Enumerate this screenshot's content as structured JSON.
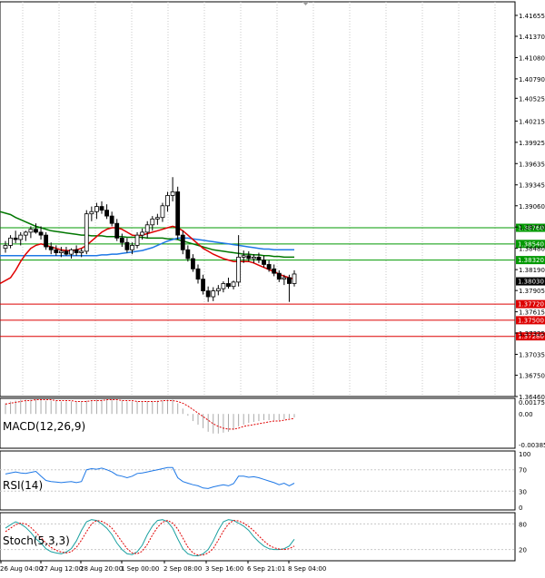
{
  "chart_data": {
    "type": "candlestick",
    "main": {
      "ylim": [
        1.3646,
        1.4184
      ],
      "price_ticks": [
        "1.41655",
        "1.41370",
        "1.41080",
        "1.40790",
        "1.40525",
        "1.40215",
        "1.39925",
        "1.39635",
        "1.39345",
        "1.39060",
        "1.38770",
        "1.38480",
        "1.38190",
        "1.37905",
        "1.37615",
        "1.37325",
        "1.37035",
        "1.36750",
        "1.36460"
      ],
      "current_price": "1.38030",
      "horizontal_levels": [
        {
          "label": "1.38760",
          "value": 1.3876,
          "color": "#009900"
        },
        {
          "label": "1.38540",
          "value": 1.3854,
          "color": "#009900"
        },
        {
          "label": "1.38320",
          "value": 1.3832,
          "color": "#009900"
        },
        {
          "label": "1.37720",
          "value": 1.3772,
          "color": "#dd0000"
        },
        {
          "label": "1.37500",
          "value": 1.375,
          "color": "#dd0000"
        },
        {
          "label": "1.37280",
          "value": 1.3728,
          "color": "#dd0000"
        }
      ],
      "candles": [
        [
          1.3848,
          1.3858,
          1.3842,
          1.3852
        ],
        [
          1.3852,
          1.3866,
          1.3848,
          1.3862
        ],
        [
          1.3862,
          1.3872,
          1.3855,
          1.386
        ],
        [
          1.386,
          1.387,
          1.3852,
          1.3866
        ],
        [
          1.3866,
          1.3872,
          1.3858,
          1.387
        ],
        [
          1.387,
          1.3878,
          1.3862,
          1.3874
        ],
        [
          1.3874,
          1.3882,
          1.3868,
          1.387
        ],
        [
          1.387,
          1.3878,
          1.386,
          1.3866
        ],
        [
          1.3866,
          1.387,
          1.3846,
          1.385
        ],
        [
          1.385,
          1.3856,
          1.384,
          1.3846
        ],
        [
          1.3846,
          1.3852,
          1.3838,
          1.3842
        ],
        [
          1.3842,
          1.385,
          1.3836,
          1.3844
        ],
        [
          1.3844,
          1.385,
          1.3838,
          1.384
        ],
        [
          1.384,
          1.3848,
          1.3834,
          1.3846
        ],
        [
          1.3846,
          1.3852,
          1.3838,
          1.3842
        ],
        [
          1.3842,
          1.3848,
          1.3836,
          1.3844
        ],
        [
          1.3844,
          1.39,
          1.384,
          1.3895
        ],
        [
          1.3895,
          1.3905,
          1.3885,
          1.3898
        ],
        [
          1.3898,
          1.391,
          1.3888,
          1.3905
        ],
        [
          1.3905,
          1.3912,
          1.3895,
          1.39
        ],
        [
          1.39,
          1.3908,
          1.3888,
          1.3892
        ],
        [
          1.3892,
          1.3898,
          1.3878,
          1.3882
        ],
        [
          1.3882,
          1.3888,
          1.3858,
          1.3862
        ],
        [
          1.3862,
          1.3868,
          1.385,
          1.3856
        ],
        [
          1.3856,
          1.3862,
          1.3842,
          1.3846
        ],
        [
          1.3846,
          1.3856,
          1.384,
          1.3852
        ],
        [
          1.3852,
          1.387,
          1.3848,
          1.3866
        ],
        [
          1.3866,
          1.3875,
          1.386,
          1.387
        ],
        [
          1.387,
          1.3885,
          1.3862,
          1.388
        ],
        [
          1.388,
          1.3892,
          1.3872,
          1.3888
        ],
        [
          1.3888,
          1.3895,
          1.388,
          1.389
        ],
        [
          1.389,
          1.391,
          1.3884,
          1.3906
        ],
        [
          1.3906,
          1.3925,
          1.3898,
          1.392
        ],
        [
          1.392,
          1.3945,
          1.3912,
          1.3925
        ],
        [
          1.3925,
          1.3932,
          1.386,
          1.3866
        ],
        [
          1.3866,
          1.3872,
          1.384,
          1.3846
        ],
        [
          1.3846,
          1.3852,
          1.383,
          1.3834
        ],
        [
          1.3834,
          1.384,
          1.3816,
          1.382
        ],
        [
          1.382,
          1.3826,
          1.38,
          1.3806
        ],
        [
          1.3806,
          1.3812,
          1.3785,
          1.379
        ],
        [
          1.379,
          1.3796,
          1.3775,
          1.3782
        ],
        [
          1.3782,
          1.3795,
          1.3776,
          1.379
        ],
        [
          1.379,
          1.3798,
          1.3784,
          1.3793
        ],
        [
          1.3793,
          1.3803,
          1.3788,
          1.38
        ],
        [
          1.38,
          1.3808,
          1.3793,
          1.3796
        ],
        [
          1.3796,
          1.3804,
          1.3792,
          1.3802
        ],
        [
          1.3802,
          1.3866,
          1.3796,
          1.3836
        ],
        [
          1.3836,
          1.3845,
          1.3828,
          1.3838
        ],
        [
          1.3838,
          1.3844,
          1.383,
          1.3834
        ],
        [
          1.3834,
          1.384,
          1.3828,
          1.3836
        ],
        [
          1.3836,
          1.3842,
          1.3828,
          1.3832
        ],
        [
          1.3832,
          1.3838,
          1.3822,
          1.3826
        ],
        [
          1.3826,
          1.3832,
          1.3816,
          1.382
        ],
        [
          1.382,
          1.3826,
          1.381,
          1.3814
        ],
        [
          1.3814,
          1.3818,
          1.3802,
          1.3806
        ],
        [
          1.3806,
          1.3812,
          1.3798,
          1.3808
        ],
        [
          1.3808,
          1.3812,
          1.3775,
          1.38
        ],
        [
          1.38,
          1.3818,
          1.3796,
          1.3813
        ]
      ],
      "ma_fast": [
        1.38,
        1.3808,
        1.3818,
        1.383,
        1.384,
        1.3848,
        1.3852,
        1.3854,
        1.3852,
        1.385,
        1.3848,
        1.3846,
        1.3845,
        1.3845,
        1.3846,
        1.3848,
        1.3852,
        1.3858,
        1.3864,
        1.387,
        1.3874,
        1.3876,
        1.3876,
        1.3874,
        1.387,
        1.3866,
        1.3865,
        1.3866,
        1.3868,
        1.387,
        1.3872,
        1.3874,
        1.3876,
        1.3878,
        1.3876,
        1.3872,
        1.3866,
        1.386,
        1.3854,
        1.3848,
        1.3844,
        1.384,
        1.3837,
        1.3834,
        1.3832,
        1.383,
        1.383,
        1.383,
        1.383,
        1.3828,
        1.3825,
        1.3822,
        1.3819,
        1.3816,
        1.3813,
        1.381,
        1.3808,
        1.3806
      ],
      "ma_slow": [
        1.3898,
        1.3894,
        1.389,
        1.3887,
        1.3884,
        1.3881,
        1.3878,
        1.3876,
        1.3874,
        1.3872,
        1.3871,
        1.387,
        1.3869,
        1.3868,
        1.3867,
        1.3866,
        1.3866,
        1.3865,
        1.3865,
        1.3865,
        1.3864,
        1.3864,
        1.3864,
        1.3864,
        1.3863,
        1.3863,
        1.3863,
        1.3863,
        1.3862,
        1.3862,
        1.3862,
        1.3862,
        1.3861,
        1.3861,
        1.386,
        1.3858,
        1.3856,
        1.3854,
        1.3852,
        1.385,
        1.3848,
        1.3846,
        1.3845,
        1.3844,
        1.3843,
        1.3842,
        1.3841,
        1.384,
        1.384,
        1.3839,
        1.3839,
        1.3838,
        1.3838,
        1.3837,
        1.3837,
        1.3836,
        1.3836,
        1.3836
      ],
      "ma_mid": [
        1.3838,
        1.3838,
        1.3838,
        1.3838,
        1.3838,
        1.3838,
        1.3838,
        1.3838,
        1.3838,
        1.3838,
        1.3838,
        1.3838,
        1.3838,
        1.3838,
        1.3838,
        1.3838,
        1.3838,
        1.3838,
        1.3838,
        1.3839,
        1.3839,
        1.384,
        1.384,
        1.3841,
        1.3842,
        1.3843,
        1.3844,
        1.3845,
        1.3847,
        1.3849,
        1.3852,
        1.3855,
        1.3858,
        1.386,
        1.3862,
        1.3862,
        1.3862,
        1.3861,
        1.386,
        1.3859,
        1.3858,
        1.3857,
        1.3856,
        1.3855,
        1.3854,
        1.3853,
        1.3852,
        1.3851,
        1.385,
        1.3849,
        1.3848,
        1.3847,
        1.3847,
        1.3846,
        1.3846,
        1.3846,
        1.3846,
        1.3846
      ]
    },
    "macd": {
      "label": "MACD(12,26,9)",
      "ticks": [
        "0.001753",
        "0.00",
        "-0.003854"
      ],
      "ylim": [
        -0.003854,
        0.001753
      ],
      "histogram": [
        0.0012,
        0.0014,
        0.0015,
        0.0016,
        0.0016,
        0.0016,
        0.0016,
        0.0016,
        0.0015,
        0.0015,
        0.0015,
        0.0014,
        0.0014,
        0.0014,
        0.0014,
        0.0014,
        0.0015,
        0.0015,
        0.0016,
        0.0016,
        0.0016,
        0.0016,
        0.0015,
        0.0015,
        0.0014,
        0.0014,
        0.0014,
        0.0014,
        0.0014,
        0.0014,
        0.0015,
        0.0015,
        0.0016,
        0.0016,
        0.0012,
        0.0006,
        -0.0002,
        -0.0008,
        -0.0012,
        -0.0016,
        -0.002,
        -0.0022,
        -0.0022,
        -0.0021,
        -0.002,
        -0.0018,
        -0.0014,
        -0.0012,
        -0.001,
        -0.0009,
        -0.0008,
        -0.0007,
        -0.0007,
        -0.0007,
        -0.0007,
        -0.0006,
        -0.0005,
        -0.0004
      ],
      "signal": [
        0.0011,
        0.0012,
        0.0013,
        0.0014,
        0.0015,
        0.0015,
        0.0016,
        0.0016,
        0.0016,
        0.0016,
        0.0015,
        0.0015,
        0.0015,
        0.0015,
        0.0014,
        0.0014,
        0.0014,
        0.0015,
        0.0015,
        0.0015,
        0.0016,
        0.0016,
        0.0016,
        0.0015,
        0.0015,
        0.0015,
        0.0014,
        0.0014,
        0.0014,
        0.0014,
        0.0014,
        0.0015,
        0.0015,
        0.0015,
        0.0014,
        0.0012,
        0.0009,
        0.0005,
        0.0001,
        -0.0003,
        -0.0007,
        -0.0011,
        -0.0014,
        -0.0016,
        -0.0017,
        -0.0017,
        -0.0016,
        -0.0014,
        -0.0013,
        -0.0012,
        -0.0011,
        -0.001,
        -0.0009,
        -0.0008,
        -0.0008,
        -0.0007,
        -0.0006,
        -0.0005
      ]
    },
    "rsi": {
      "label": "RSI(14)",
      "ticks": [
        "100",
        "70",
        "30",
        "0"
      ],
      "ylim": [
        0,
        100
      ],
      "values": [
        62,
        64,
        66,
        64,
        63,
        65,
        67,
        58,
        50,
        48,
        47,
        46,
        47,
        48,
        46,
        48,
        70,
        72,
        71,
        73,
        70,
        66,
        60,
        58,
        55,
        58,
        63,
        64,
        66,
        68,
        70,
        72,
        74,
        74,
        55,
        48,
        45,
        42,
        40,
        36,
        35,
        38,
        40,
        42,
        40,
        44,
        58,
        58,
        56,
        57,
        55,
        52,
        49,
        46,
        42,
        45,
        40,
        45
      ]
    },
    "stoch": {
      "label": "Stoch(5,3,3)",
      "ticks": [
        "80",
        "20"
      ],
      "ylim": [
        0,
        100
      ],
      "k": [
        70,
        78,
        85,
        80,
        72,
        60,
        45,
        35,
        22,
        15,
        12,
        10,
        14,
        22,
        40,
        65,
        85,
        90,
        88,
        80,
        70,
        55,
        35,
        20,
        10,
        8,
        15,
        30,
        55,
        75,
        88,
        90,
        85,
        70,
        45,
        22,
        10,
        6,
        5,
        10,
        20,
        40,
        65,
        85,
        90,
        88,
        82,
        75,
        65,
        50,
        38,
        28,
        22,
        20,
        20,
        22,
        28,
        44
      ],
      "d": [
        62,
        70,
        78,
        82,
        80,
        72,
        60,
        48,
        35,
        25,
        18,
        14,
        12,
        15,
        25,
        42,
        62,
        80,
        88,
        86,
        80,
        70,
        55,
        38,
        22,
        12,
        10,
        16,
        32,
        54,
        72,
        84,
        88,
        82,
        68,
        47,
        26,
        12,
        7,
        7,
        12,
        22,
        42,
        63,
        80,
        88,
        87,
        82,
        74,
        64,
        52,
        40,
        30,
        24,
        21,
        20,
        22,
        28
      ]
    },
    "x_labels": [
      "26 Aug 04:00",
      "27 Aug 12:00",
      "28 Aug 20:00",
      "1 Sep 00:00",
      "2 Sep 08:00",
      "3 Sep 16:00",
      "6 Sep 21:01",
      "8 Sep 04:00"
    ]
  }
}
